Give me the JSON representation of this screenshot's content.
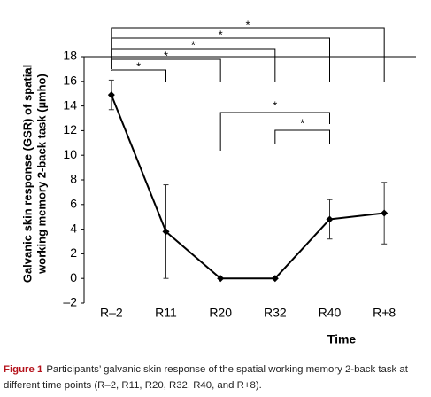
{
  "chart_data": {
    "type": "line",
    "ylabel": [
      "Galvanic skin response (GSR) of spatial",
      "working memory 2-back task (µmho)"
    ],
    "xlabel": "Time",
    "categories": [
      "R–2",
      "R11",
      "R20",
      "R32",
      "R40",
      "R+8"
    ],
    "series": [
      {
        "color": "#000000",
        "values": [
          14.9,
          3.8,
          0,
          0,
          4.8,
          5.3
        ],
        "errors": [
          1.2,
          3.8,
          0,
          0,
          1.6,
          2.5
        ]
      }
    ],
    "ylim": [
      -2,
      18
    ],
    "yticks": [
      {
        "value": -2,
        "label": "–2"
      },
      0,
      2,
      4,
      6,
      8,
      10,
      12,
      14,
      16,
      18
    ],
    "significance": [
      {
        "from": "R–2",
        "to": "R11",
        "label": "*"
      },
      {
        "from": "R–2",
        "to": "R20",
        "label": "*"
      },
      {
        "from": "R–2",
        "to": "R32",
        "label": "*"
      },
      {
        "from": "R–2",
        "to": "R40",
        "label": "*"
      },
      {
        "from": "R–2",
        "to": "R+8",
        "label": "*"
      },
      {
        "from": "R20",
        "to": "R40",
        "label": "*"
      },
      {
        "from": "R32",
        "to": "R40",
        "label": "*"
      }
    ]
  },
  "caption": {
    "label": "Figure 1",
    "text": "Participants’ galvanic skin response of the spatial working memory 2-back task at different time points (R–2, R11, R20, R32, R40, and R+8)."
  }
}
